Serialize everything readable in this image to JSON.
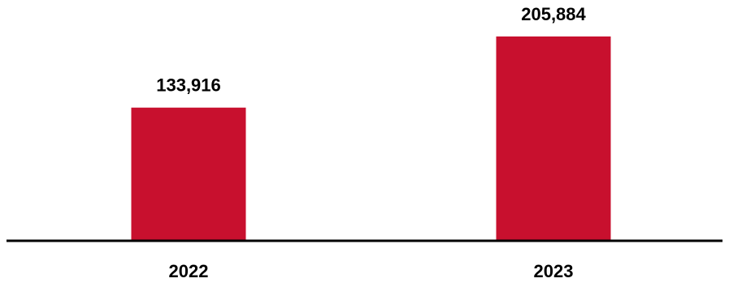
{
  "chart_data": {
    "type": "bar",
    "categories": [
      "2022",
      "2023"
    ],
    "values": [
      133916,
      205884
    ],
    "value_labels": [
      "133,916",
      "205,884"
    ],
    "title": "",
    "xlabel": "",
    "ylabel": "",
    "ylim": [
      0,
      205884
    ],
    "grid": false,
    "legend": "none",
    "bar_color": "#C8102E",
    "axis_color": "#000000"
  }
}
